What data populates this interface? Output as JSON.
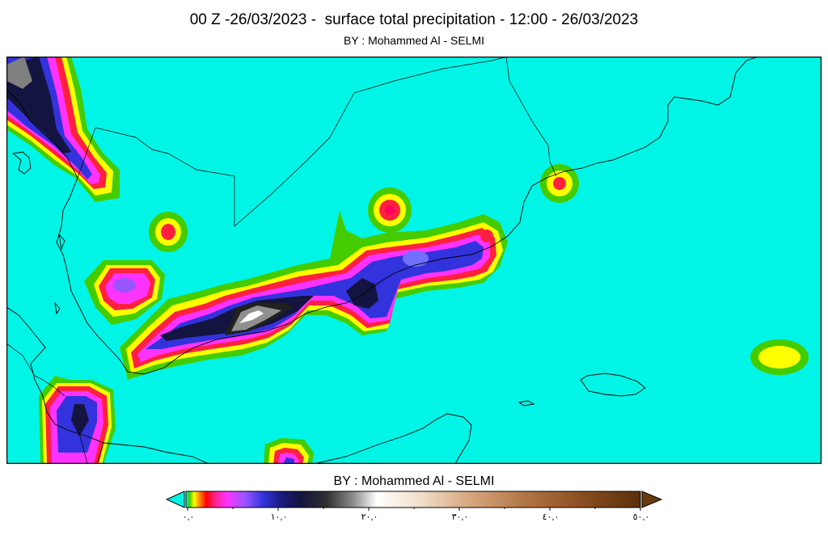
{
  "header": {
    "title": "00 Z -26/03/2023 -  surface total precipitation - 12:00 - 26/03/2023",
    "subtitle": "BY : Mohammed Al - SELMI"
  },
  "colorbar": {
    "credit": "BY : Mohammed Al - SELMI",
    "tick_labels": [
      "٠,٠",
      "١٠,٠",
      "٢٠,٠",
      "٣٠,٠",
      "٤٠,٠",
      "٥٠,٠"
    ],
    "values": [
      0,
      10,
      20,
      30,
      40,
      50
    ],
    "colors": {
      "background_cyan": "#00f5e6",
      "green": "#44cc00",
      "yellow": "#ffff00",
      "red": "#ff2040",
      "magenta": "#ff33ff",
      "blue": "#3333dd",
      "navy": "#141440",
      "white": "#ffffff",
      "tan": "#e8c4a0",
      "brown": "#6b3a10"
    }
  }
}
